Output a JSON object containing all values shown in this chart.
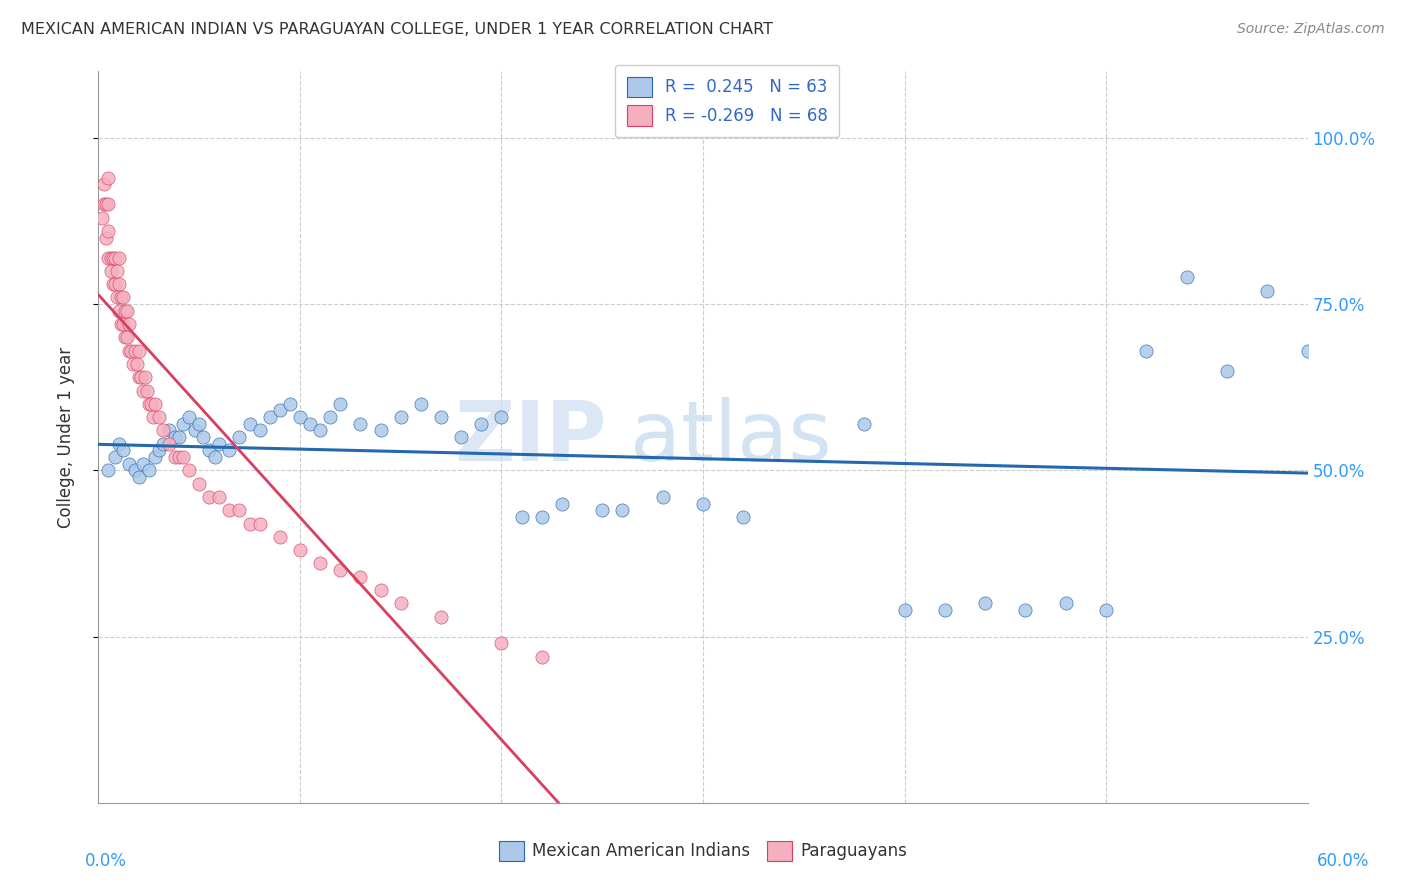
{
  "title": "MEXICAN AMERICAN INDIAN VS PARAGUAYAN COLLEGE, UNDER 1 YEAR CORRELATION CHART",
  "source": "Source: ZipAtlas.com",
  "ylabel": "College, Under 1 year",
  "x_tick_labels_bottom": [
    "0.0%",
    "60.0%"
  ],
  "x_tick_values_bottom": [
    0.0,
    0.6
  ],
  "y_tick_labels": [
    "25.0%",
    "50.0%",
    "75.0%",
    "100.0%"
  ],
  "y_tick_values": [
    0.25,
    0.5,
    0.75,
    1.0
  ],
  "xlim": [
    0.0,
    0.6
  ],
  "ylim": [
    0.0,
    1.1
  ],
  "blue_color": "#adc8e8",
  "pink_color": "#f5afc0",
  "blue_line_color": "#2468b0",
  "pink_line_color": "#d94060",
  "pink_dash_color": "#c8c8d8",
  "watermark_zip": "ZIP",
  "watermark_atlas": "atlas",
  "legend_blue_label": "R =  0.245   N = 63",
  "legend_pink_label": "R = -0.269   N = 68",
  "legend_bottom_blue": "Mexican American Indians",
  "legend_bottom_pink": "Paraguayans",
  "blue_x": [
    0.005,
    0.008,
    0.01,
    0.012,
    0.015,
    0.018,
    0.02,
    0.022,
    0.025,
    0.028,
    0.03,
    0.032,
    0.035,
    0.038,
    0.04,
    0.042,
    0.045,
    0.048,
    0.05,
    0.052,
    0.055,
    0.058,
    0.06,
    0.065,
    0.07,
    0.075,
    0.08,
    0.085,
    0.09,
    0.095,
    0.1,
    0.105,
    0.11,
    0.115,
    0.12,
    0.13,
    0.14,
    0.15,
    0.16,
    0.17,
    0.18,
    0.19,
    0.2,
    0.21,
    0.22,
    0.23,
    0.25,
    0.26,
    0.28,
    0.3,
    0.32,
    0.38,
    0.4,
    0.42,
    0.44,
    0.46,
    0.48,
    0.5,
    0.52,
    0.54,
    0.56,
    0.58,
    0.6
  ],
  "blue_y": [
    0.5,
    0.52,
    0.54,
    0.53,
    0.51,
    0.5,
    0.49,
    0.51,
    0.5,
    0.52,
    0.53,
    0.54,
    0.56,
    0.55,
    0.55,
    0.57,
    0.58,
    0.56,
    0.57,
    0.55,
    0.53,
    0.52,
    0.54,
    0.53,
    0.55,
    0.57,
    0.56,
    0.58,
    0.59,
    0.6,
    0.58,
    0.57,
    0.56,
    0.58,
    0.6,
    0.57,
    0.56,
    0.58,
    0.6,
    0.58,
    0.55,
    0.57,
    0.58,
    0.43,
    0.43,
    0.45,
    0.44,
    0.44,
    0.46,
    0.45,
    0.43,
    0.57,
    0.29,
    0.29,
    0.3,
    0.29,
    0.3,
    0.29,
    0.68,
    0.79,
    0.65,
    0.77,
    0.68
  ],
  "pink_x": [
    0.002,
    0.003,
    0.003,
    0.004,
    0.004,
    0.005,
    0.005,
    0.005,
    0.005,
    0.006,
    0.006,
    0.007,
    0.007,
    0.008,
    0.008,
    0.009,
    0.009,
    0.01,
    0.01,
    0.01,
    0.011,
    0.011,
    0.012,
    0.012,
    0.013,
    0.013,
    0.014,
    0.014,
    0.015,
    0.015,
    0.016,
    0.017,
    0.018,
    0.019,
    0.02,
    0.02,
    0.021,
    0.022,
    0.023,
    0.024,
    0.025,
    0.026,
    0.027,
    0.028,
    0.03,
    0.032,
    0.035,
    0.038,
    0.04,
    0.042,
    0.045,
    0.05,
    0.055,
    0.06,
    0.065,
    0.07,
    0.075,
    0.08,
    0.09,
    0.1,
    0.11,
    0.12,
    0.13,
    0.14,
    0.15,
    0.17,
    0.2,
    0.22
  ],
  "pink_y": [
    0.88,
    0.9,
    0.93,
    0.85,
    0.9,
    0.82,
    0.86,
    0.9,
    0.94,
    0.8,
    0.82,
    0.78,
    0.82,
    0.78,
    0.82,
    0.76,
    0.8,
    0.74,
    0.78,
    0.82,
    0.72,
    0.76,
    0.72,
    0.76,
    0.7,
    0.74,
    0.7,
    0.74,
    0.68,
    0.72,
    0.68,
    0.66,
    0.68,
    0.66,
    0.64,
    0.68,
    0.64,
    0.62,
    0.64,
    0.62,
    0.6,
    0.6,
    0.58,
    0.6,
    0.58,
    0.56,
    0.54,
    0.52,
    0.52,
    0.52,
    0.5,
    0.48,
    0.46,
    0.46,
    0.44,
    0.44,
    0.42,
    0.42,
    0.4,
    0.38,
    0.36,
    0.35,
    0.34,
    0.32,
    0.3,
    0.28,
    0.24,
    0.22
  ]
}
